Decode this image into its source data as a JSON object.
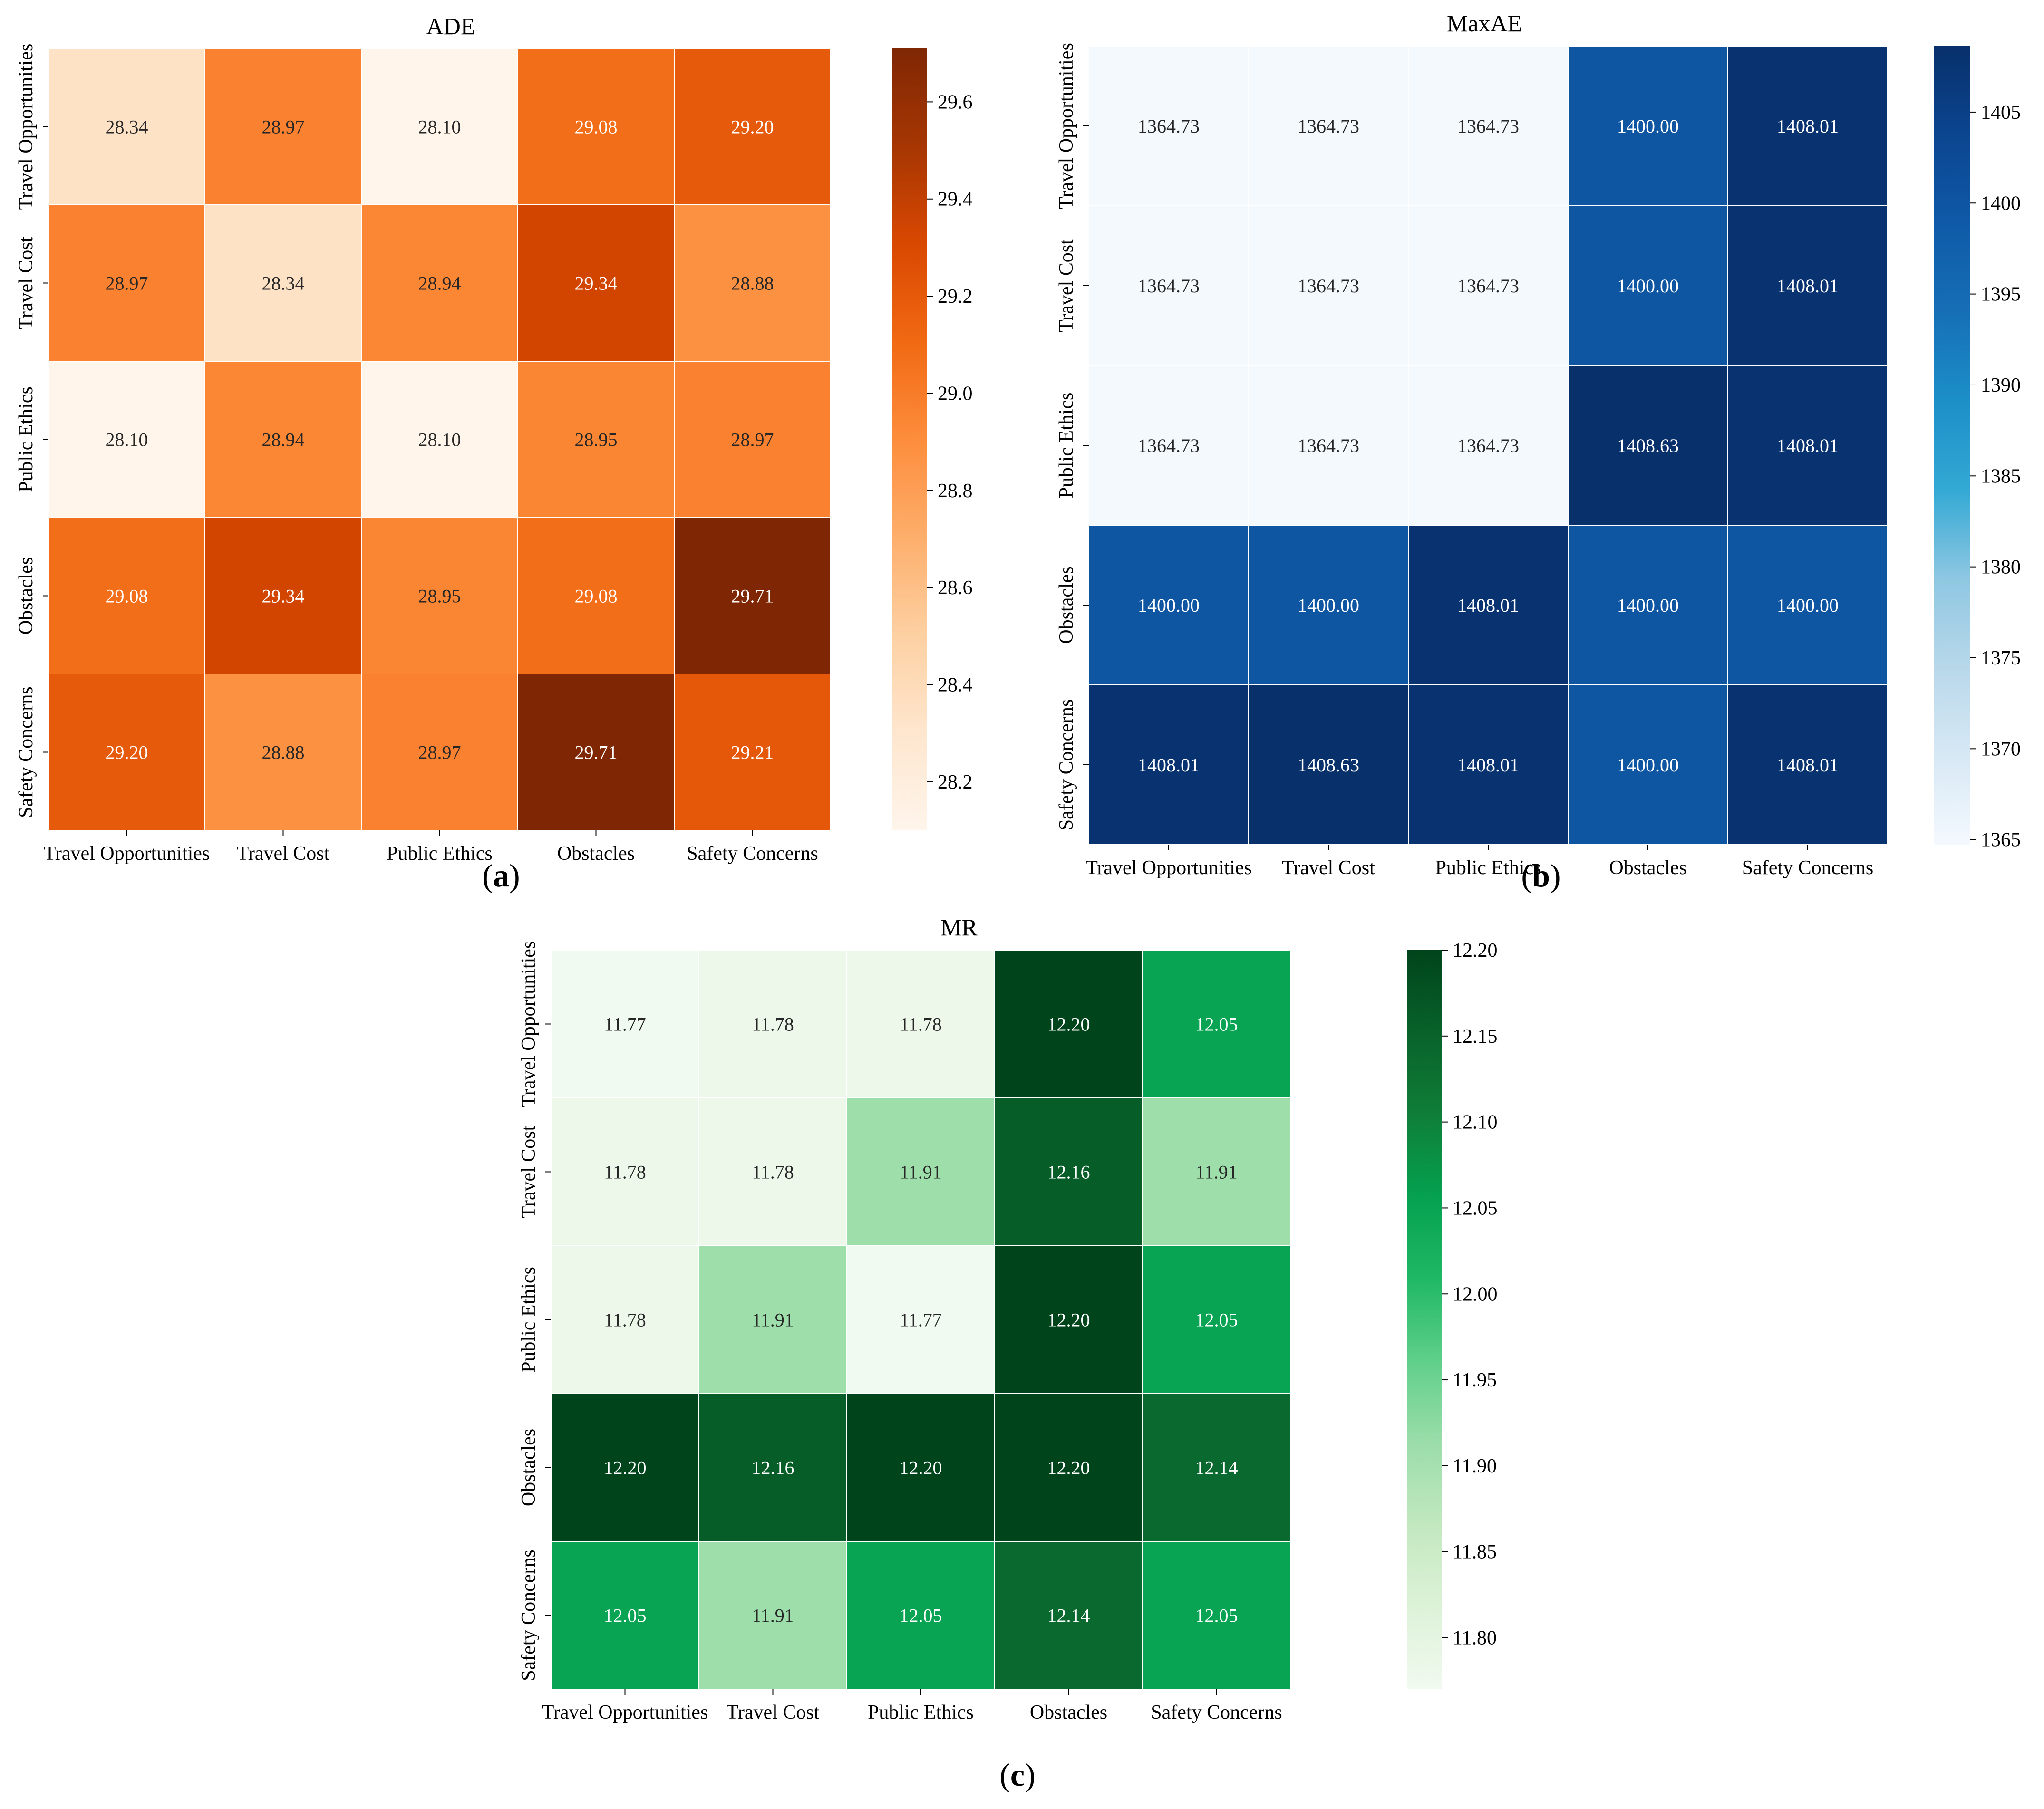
{
  "chart_data": [
    {
      "type": "heatmap",
      "title": "ADE",
      "caption_letter": "a",
      "row_labels": [
        "Travel Opportunities",
        "Travel Cost",
        "Public Ethics",
        "Obstacles",
        "Safety Concerns"
      ],
      "col_labels": [
        "Travel Opportunities",
        "Travel Cost",
        "Public Ethics",
        "Obstacles",
        "Safety Concerns"
      ],
      "values": [
        [
          28.34,
          28.97,
          28.1,
          29.08,
          29.2
        ],
        [
          28.97,
          28.34,
          28.94,
          29.34,
          28.88
        ],
        [
          28.1,
          28.94,
          28.1,
          28.95,
          28.97
        ],
        [
          29.08,
          29.34,
          28.95,
          29.08,
          29.71
        ],
        [
          29.2,
          28.88,
          28.97,
          29.71,
          29.21
        ]
      ],
      "cell_text": [
        [
          "28.34",
          "28.97",
          "28.10",
          "29.08",
          "29.20"
        ],
        [
          "28.97",
          "28.34",
          "28.94",
          "29.34",
          "28.88"
        ],
        [
          "28.10",
          "28.94",
          "28.10",
          "28.95",
          "28.97"
        ],
        [
          "29.08",
          "29.34",
          "28.95",
          "29.08",
          "29.71"
        ],
        [
          "29.20",
          "28.88",
          "28.97",
          "29.71",
          "29.21"
        ]
      ],
      "colorbar": {
        "vmin": 28.1,
        "vmax": 29.71,
        "ticks": [
          28.2,
          28.4,
          28.6,
          28.8,
          29.0,
          29.2,
          29.4,
          29.6
        ],
        "tick_labels": [
          "28.2",
          "28.4",
          "28.6",
          "28.8",
          "29.0",
          "29.2",
          "29.4",
          "29.6"
        ]
      },
      "colormap": "Oranges",
      "colormap_stops": [
        "#fff5eb",
        "#fee6ce",
        "#fdd0a2",
        "#fdae6b",
        "#fd8d3c",
        "#f16913",
        "#d94801",
        "#a63603",
        "#7f2704"
      ]
    },
    {
      "type": "heatmap",
      "title": "MaxAE",
      "caption_letter": "b",
      "row_labels": [
        "Travel Opportunities",
        "Travel Cost",
        "Public Ethics",
        "Obstacles",
        "Safety Concerns"
      ],
      "col_labels": [
        "Travel Opportunities",
        "Travel Cost",
        "Public Ethics",
        "Obstacles",
        "Safety Concerns"
      ],
      "values": [
        [
          1364.73,
          1364.73,
          1364.73,
          1400.0,
          1408.01
        ],
        [
          1364.73,
          1364.73,
          1364.73,
          1400.0,
          1408.01
        ],
        [
          1364.73,
          1364.73,
          1364.73,
          1408.63,
          1408.01
        ],
        [
          1400.0,
          1400.0,
          1408.01,
          1400.0,
          1400.0
        ],
        [
          1408.01,
          1408.63,
          1408.01,
          1400.0,
          1408.01
        ]
      ],
      "cell_text": [
        [
          "1364.73",
          "1364.73",
          "1364.73",
          "1400.00",
          "1408.01"
        ],
        [
          "1364.73",
          "1364.73",
          "1364.73",
          "1400.00",
          "1408.01"
        ],
        [
          "1364.73",
          "1364.73",
          "1364.73",
          "1408.63",
          "1408.01"
        ],
        [
          "1400.00",
          "1400.00",
          "1408.01",
          "1400.00",
          "1400.00"
        ],
        [
          "1408.01",
          "1408.63",
          "1408.01",
          "1400.00",
          "1408.01"
        ]
      ],
      "colorbar": {
        "vmin": 1364.73,
        "vmax": 1408.63,
        "ticks": [
          1365,
          1370,
          1375,
          1380,
          1385,
          1390,
          1395,
          1400,
          1405
        ],
        "tick_labels": [
          "1365",
          "1370",
          "1375",
          "1380",
          "1385",
          "1390",
          "1395",
          "1400",
          "1405"
        ]
      },
      "colormap": "Blues",
      "colormap_stops": [
        "#f4f9fe",
        "#d7e8f5",
        "#b8d8ea",
        "#8ec7e2",
        "#33a9d4",
        "#1c8fc8",
        "#166fb6",
        "#0f5aa8",
        "#0b4590",
        "#08306b"
      ]
    },
    {
      "type": "heatmap",
      "title": "MR",
      "caption_letter": "c",
      "row_labels": [
        "Travel Opportunities",
        "Travel Cost",
        "Public Ethics",
        "Obstacles",
        "Safety Concerns"
      ],
      "col_labels": [
        "Travel Opportunities",
        "Travel Cost",
        "Public Ethics",
        "Obstacles",
        "Safety Concerns"
      ],
      "values": [
        [
          11.77,
          11.78,
          11.78,
          12.2,
          12.05
        ],
        [
          11.78,
          11.78,
          11.91,
          12.16,
          11.91
        ],
        [
          11.78,
          11.91,
          11.77,
          12.2,
          12.05
        ],
        [
          12.2,
          12.16,
          12.2,
          12.2,
          12.14
        ],
        [
          12.05,
          11.91,
          12.05,
          12.14,
          12.05
        ]
      ],
      "cell_text": [
        [
          "11.77",
          "11.78",
          "11.78",
          "12.20",
          "12.05"
        ],
        [
          "11.78",
          "11.78",
          "11.91",
          "12.16",
          "11.91"
        ],
        [
          "11.78",
          "11.91",
          "11.77",
          "12.20",
          "12.05"
        ],
        [
          "12.20",
          "12.16",
          "12.20",
          "12.20",
          "12.14"
        ],
        [
          "12.05",
          "11.91",
          "12.05",
          "12.14",
          "12.05"
        ]
      ],
      "colorbar": {
        "vmin": 11.77,
        "vmax": 12.2,
        "ticks": [
          11.8,
          11.85,
          11.9,
          11.95,
          12.0,
          12.05,
          12.1,
          12.15,
          12.2
        ],
        "tick_labels": [
          "11.80",
          "11.85",
          "11.90",
          "11.95",
          "12.00",
          "12.05",
          "12.10",
          "12.15",
          "12.20"
        ]
      },
      "colormap": "Greens",
      "colormap_stops": [
        "#f1faf0",
        "#ddf2d8",
        "#c2e8bf",
        "#9bddaa",
        "#5fcf8a",
        "#1fb865",
        "#05a150",
        "#0f7e38",
        "#08622a",
        "#00441b"
      ]
    }
  ]
}
